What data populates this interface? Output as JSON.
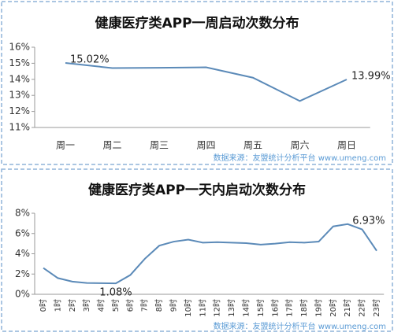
{
  "chart_data": [
    {
      "type": "line",
      "title": "健康医疗类APP一周启动次数分布",
      "categories": [
        "周一",
        "周二",
        "周三",
        "周四",
        "周五",
        "周六",
        "周日"
      ],
      "series": [
        {
          "color": "#5b8ab8",
          "values": [
            15.02,
            14.7,
            14.72,
            14.75,
            14.1,
            12.65,
            13.99
          ],
          "value_labels": [
            "15.02%",
            null,
            null,
            null,
            null,
            null,
            "13.99%"
          ]
        }
      ],
      "ylim": [
        11,
        16
      ],
      "yticks": [
        {
          "value": 11,
          "label": "11%"
        },
        {
          "value": 12,
          "label": "12%"
        },
        {
          "value": 13,
          "label": "13%"
        },
        {
          "value": 14,
          "label": "14%"
        },
        {
          "value": 15,
          "label": "15%"
        },
        {
          "value": 16,
          "label": "16%"
        }
      ],
      "source": "数据来源：友盟统计分析平台 www.umeng.com"
    },
    {
      "type": "line",
      "title": "健康医疗类APP一天内启动次数分布",
      "categories": [
        "0时",
        "1时",
        "2时",
        "3时",
        "4时",
        "5时",
        "6时",
        "7时",
        "8时",
        "9时",
        "10时",
        "11时",
        "12时",
        "13时",
        "14时",
        "15时",
        "16时",
        "17时",
        "18时",
        "19时",
        "20时",
        "21时",
        "22时",
        "23时"
      ],
      "series": [
        {
          "color": "#5b8ab8",
          "values": [
            2.6,
            1.6,
            1.25,
            1.12,
            1.1,
            1.08,
            1.9,
            3.5,
            4.8,
            5.2,
            5.4,
            5.1,
            5.15,
            5.1,
            5.05,
            4.9,
            5.0,
            5.15,
            5.1,
            5.2,
            6.7,
            6.93,
            6.4,
            4.3
          ],
          "value_labels": [
            null,
            null,
            null,
            null,
            null,
            "1.08%",
            null,
            null,
            null,
            null,
            null,
            null,
            null,
            null,
            null,
            null,
            null,
            null,
            null,
            null,
            null,
            "6.93%",
            null,
            null
          ]
        }
      ],
      "ylim": [
        0,
        8
      ],
      "yticks": [
        {
          "value": 0,
          "label": "0%"
        },
        {
          "value": 2,
          "label": "2%"
        },
        {
          "value": 4,
          "label": "4%"
        },
        {
          "value": 6,
          "label": "6%"
        },
        {
          "value": 8,
          "label": "8%"
        }
      ],
      "source": "数据来源：友盟统计分析平台 www.umeng.com"
    }
  ]
}
